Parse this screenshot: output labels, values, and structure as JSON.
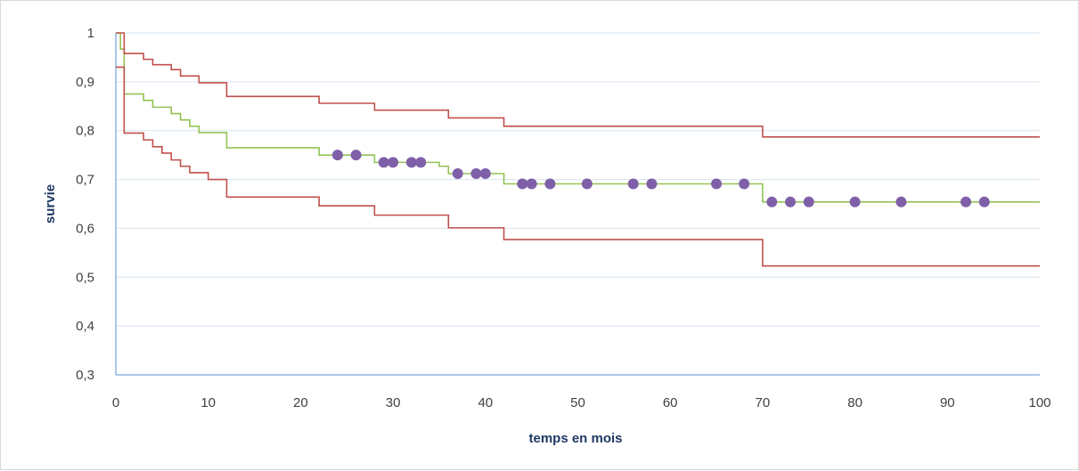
{
  "chart_data": {
    "type": "line",
    "title": "",
    "xlabel": "temps en mois",
    "ylabel": "survie",
    "xlim": [
      0,
      100
    ],
    "ylim": [
      0.3,
      1
    ],
    "x_ticks": [
      0,
      10,
      20,
      30,
      40,
      50,
      60,
      70,
      80,
      90,
      100
    ],
    "x_tick_labels": [
      "0",
      "10",
      "20",
      "30",
      "40",
      "50",
      "60",
      "70",
      "80",
      "90",
      "100"
    ],
    "y_ticks": [
      0.3,
      0.4,
      0.5,
      0.6,
      0.7,
      0.8,
      0.9,
      1.0
    ],
    "y_tick_labels": [
      "0,3",
      "0,4",
      "0,5",
      "0,6",
      "0,7",
      "0,8",
      "0,9",
      "1"
    ],
    "grid": "horizontal",
    "legend": "none",
    "series": [
      {
        "role": "survival",
        "color": "#92c353",
        "steps": [
          [
            0,
            1.0
          ],
          [
            0.5,
            0.967
          ],
          [
            0.9,
            0.875
          ],
          [
            2,
            0.875
          ],
          [
            3,
            0.862
          ],
          [
            4,
            0.848
          ],
          [
            5,
            0.848
          ],
          [
            6,
            0.835
          ],
          [
            7,
            0.822
          ],
          [
            8,
            0.809
          ],
          [
            9,
            0.796
          ],
          [
            10,
            0.796
          ],
          [
            12,
            0.765
          ],
          [
            22,
            0.75
          ],
          [
            28,
            0.735
          ],
          [
            35,
            0.727
          ],
          [
            36,
            0.712
          ],
          [
            42,
            0.691
          ],
          [
            70,
            0.654
          ],
          [
            100,
            0.654
          ]
        ]
      },
      {
        "role": "upper-bound",
        "color": "#c0504d",
        "steps": [
          [
            0,
            1.0
          ],
          [
            0.8,
            1.0
          ],
          [
            0.9,
            0.958
          ],
          [
            3,
            0.946
          ],
          [
            4,
            0.935
          ],
          [
            6,
            0.925
          ],
          [
            7,
            0.912
          ],
          [
            9,
            0.898
          ],
          [
            12,
            0.87
          ],
          [
            22,
            0.856
          ],
          [
            28,
            0.842
          ],
          [
            36,
            0.826
          ],
          [
            42,
            0.809
          ],
          [
            70,
            0.787
          ],
          [
            100,
            0.787
          ]
        ]
      },
      {
        "role": "lower-bound",
        "color": "#c0504d",
        "steps": [
          [
            0,
            0.93
          ],
          [
            0.8,
            0.93
          ],
          [
            0.9,
            0.795
          ],
          [
            3,
            0.781
          ],
          [
            4,
            0.767
          ],
          [
            5,
            0.754
          ],
          [
            6,
            0.74
          ],
          [
            7,
            0.727
          ],
          [
            8,
            0.714
          ],
          [
            10,
            0.7
          ],
          [
            12,
            0.664
          ],
          [
            22,
            0.646
          ],
          [
            28,
            0.627
          ],
          [
            36,
            0.601
          ],
          [
            42,
            0.577
          ],
          [
            70,
            0.523
          ],
          [
            100,
            0.523
          ]
        ]
      }
    ],
    "censored": {
      "color": "#7f5fa8",
      "x": [
        24,
        26,
        29,
        30,
        32,
        33,
        37,
        39,
        40,
        44,
        45,
        47,
        51,
        56,
        58,
        65,
        68,
        71,
        73,
        75,
        80,
        85,
        92,
        94
      ],
      "y": [
        0.75,
        0.75,
        0.735,
        0.735,
        0.735,
        0.735,
        0.712,
        0.712,
        0.712,
        0.691,
        0.691,
        0.691,
        0.691,
        0.691,
        0.691,
        0.691,
        0.691,
        0.654,
        0.654,
        0.654,
        0.654,
        0.654,
        0.654,
        0.654
      ]
    },
    "colors": {
      "gridline": "#d6e4f0",
      "axis": "#8eb4e3",
      "tick_text": "#404040",
      "axis_title": "#1f3864"
    }
  }
}
